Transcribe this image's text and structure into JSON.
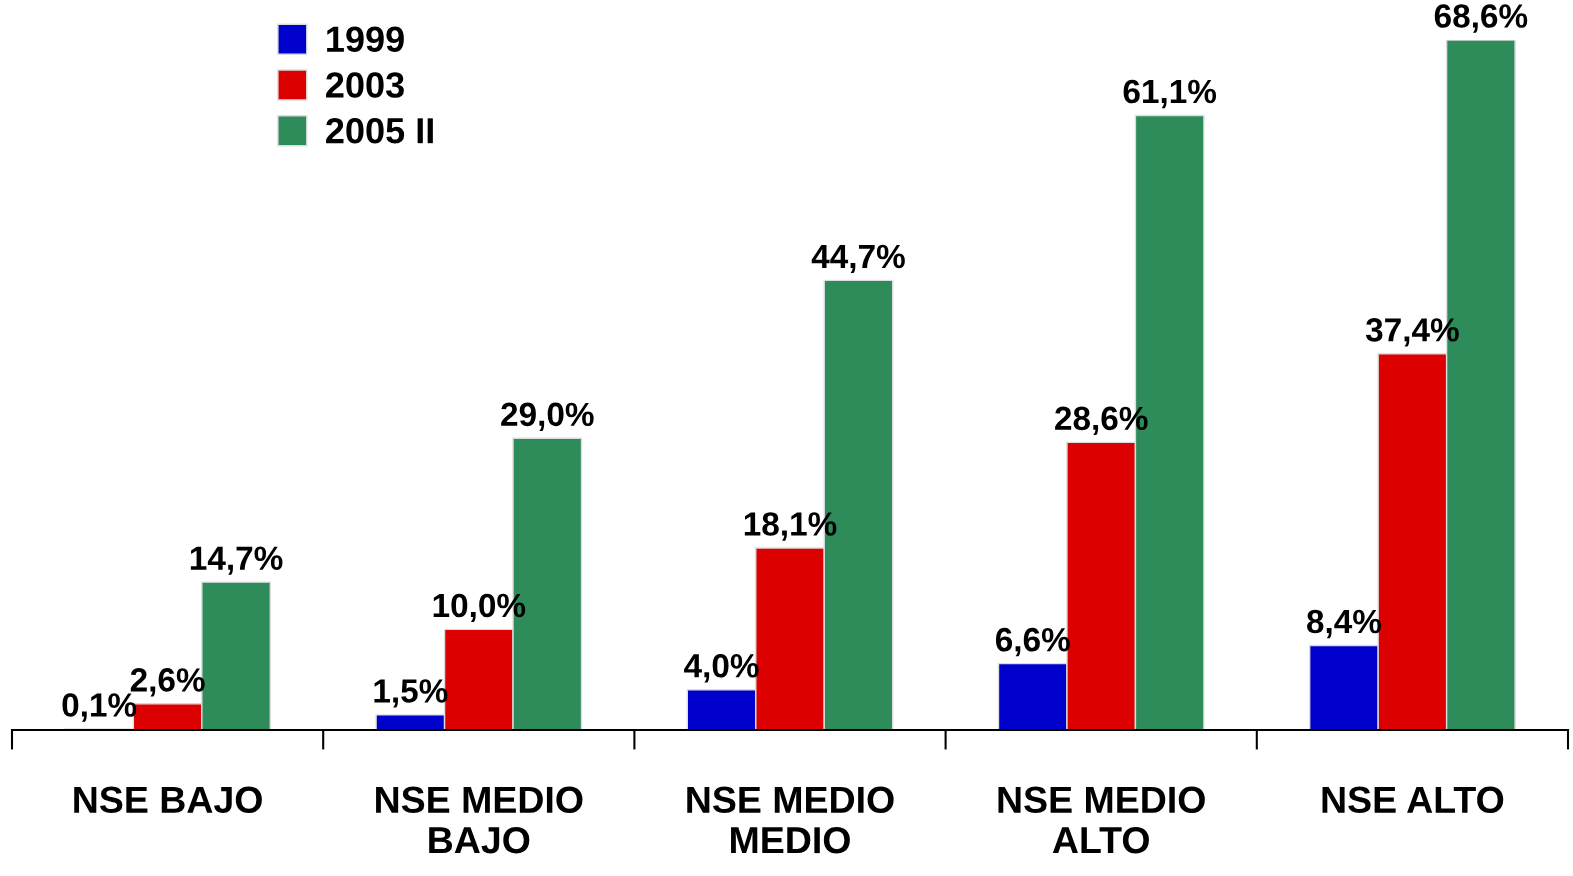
{
  "chart_data": {
    "type": "bar",
    "categories": [
      "NSE BAJO",
      "NSE MEDIO\nBAJO",
      "NSE MEDIO\nMEDIO",
      "NSE MEDIO\nALTO",
      "NSE ALTO"
    ],
    "series": [
      {
        "name": "1999",
        "color": "#0000cc",
        "values": [
          0.1,
          1.5,
          4.0,
          6.6,
          8.4
        ],
        "value_labels": [
          "0,1%",
          "1,5%",
          "4,0%",
          "6,6%",
          "8,4%"
        ]
      },
      {
        "name": "2003",
        "color": "#dd0000",
        "values": [
          2.6,
          10.0,
          18.1,
          28.6,
          37.4
        ],
        "value_labels": [
          "2,6%",
          "10,0%",
          "18,1%",
          "28,6%",
          "37,4%"
        ]
      },
      {
        "name": "2005 II",
        "color": "#2e8b5a",
        "values": [
          14.7,
          29.0,
          44.7,
          61.1,
          68.6
        ],
        "value_labels": [
          "14,7%",
          "29,0%",
          "44,7%",
          "61,1%",
          "68,6%"
        ]
      }
    ],
    "legend": "top left",
    "grid": false
  }
}
